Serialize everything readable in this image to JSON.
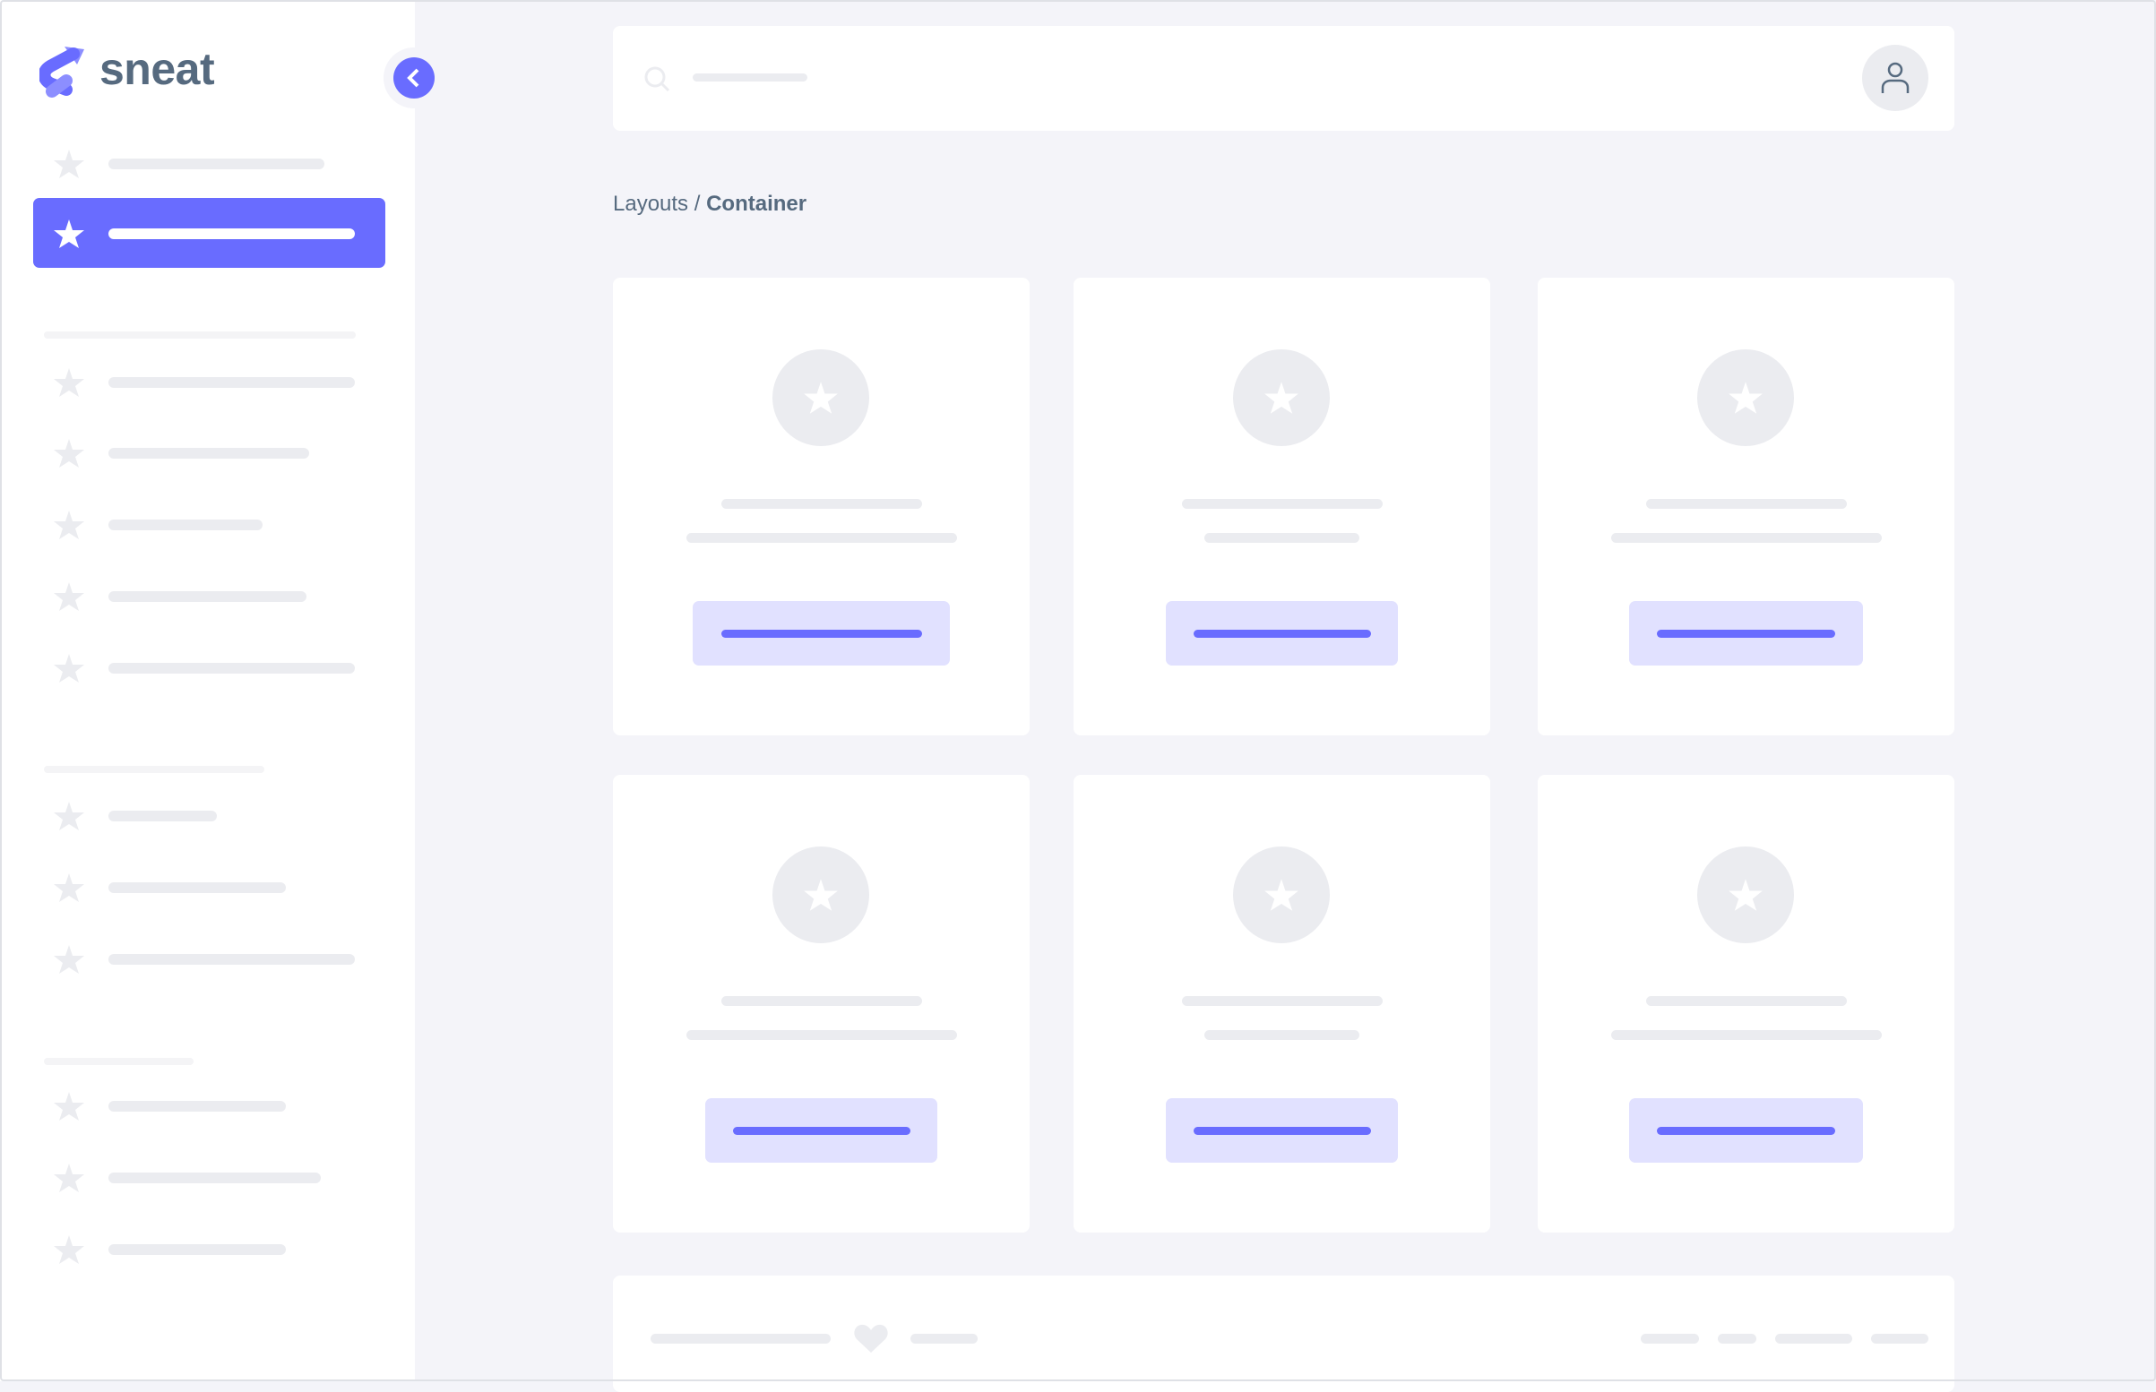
{
  "brand": {
    "name": "sneat",
    "color": "#696cff"
  },
  "colors": {
    "primary": "#696cff",
    "primary_light": "#e1e1ff",
    "skeleton": "#ebecf0",
    "background": "#f4f4f9",
    "text": "#566a7f"
  },
  "sidebar": {
    "collapse_icon": "chevron-left-icon",
    "item_icon": "star-icon",
    "active_index": 1,
    "sections": 4
  },
  "topbar": {
    "search_icon": "search-icon",
    "avatar_icon": "user-icon"
  },
  "breadcrumb": {
    "parent": "Layouts",
    "separator": " / ",
    "current": "Container"
  },
  "cards": {
    "count": 6,
    "icon": "star-icon"
  },
  "footer": {
    "icon": "heart-icon"
  }
}
